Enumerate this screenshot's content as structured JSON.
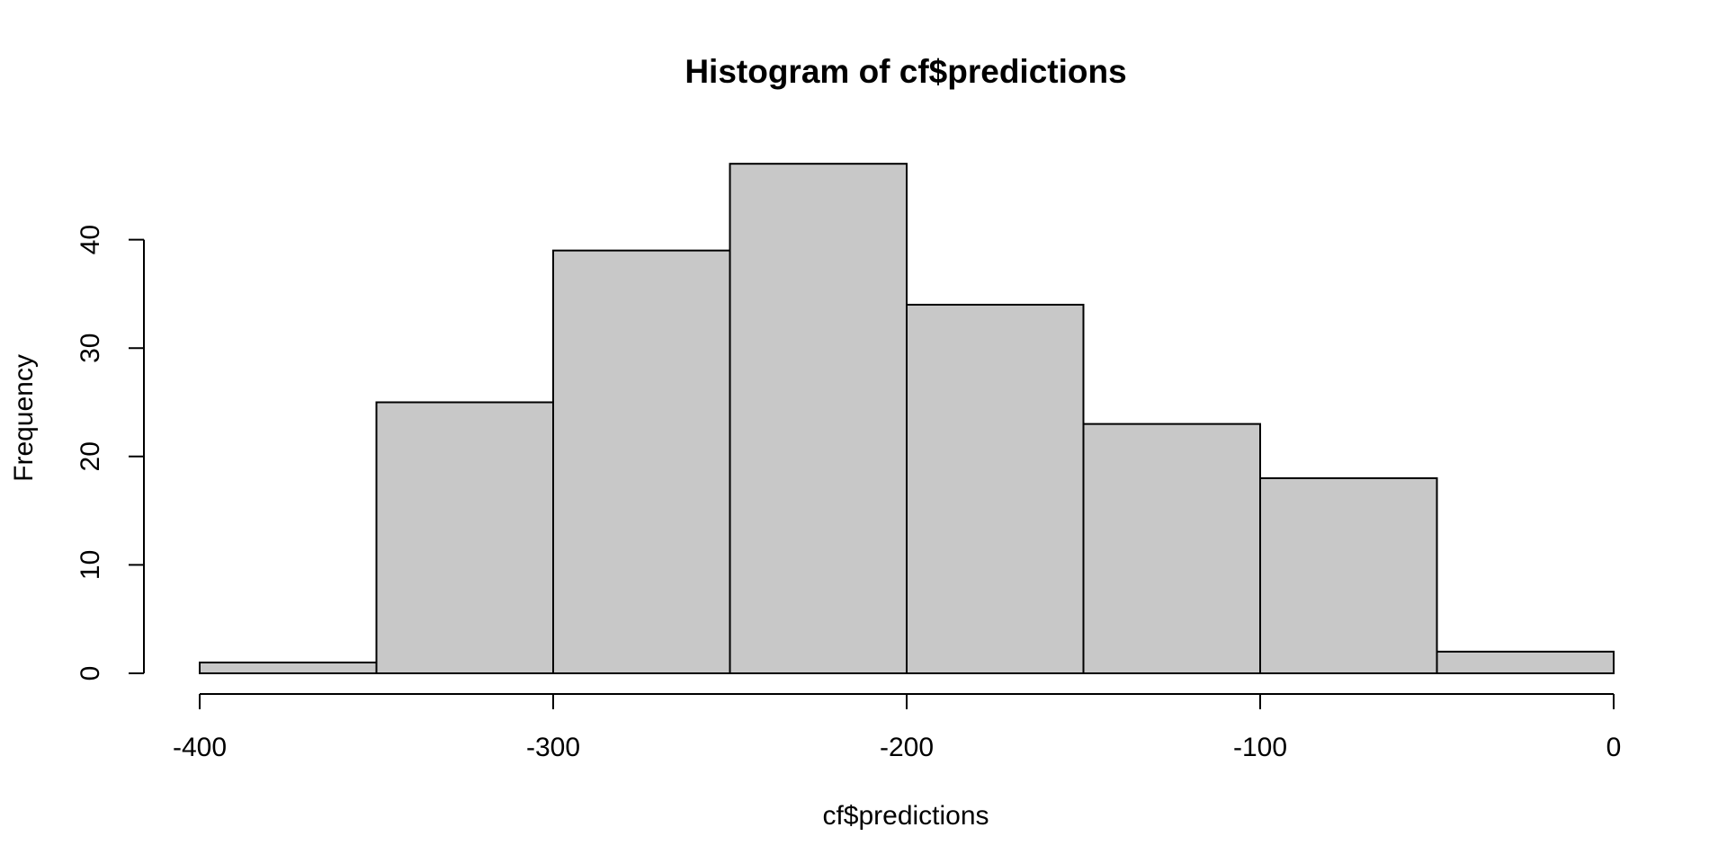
{
  "chart_data": {
    "type": "bar",
    "title": "Histogram of cf$predictions",
    "xlabel": "cf$predictions",
    "ylabel": "Frequency",
    "bins": [
      {
        "start": -400,
        "end": -350,
        "count": 1
      },
      {
        "start": -350,
        "end": -300,
        "count": 25
      },
      {
        "start": -300,
        "end": -250,
        "count": 39
      },
      {
        "start": -250,
        "end": -200,
        "count": 47
      },
      {
        "start": -200,
        "end": -150,
        "count": 34
      },
      {
        "start": -150,
        "end": -100,
        "count": 23
      },
      {
        "start": -100,
        "end": -50,
        "count": 18
      },
      {
        "start": -50,
        "end": 0,
        "count": 2
      }
    ],
    "xlim": [
      -400,
      0
    ],
    "ylim": [
      0,
      47
    ],
    "x_ticks": [
      -400,
      -300,
      -200,
      -100,
      0
    ],
    "y_ticks": [
      0,
      10,
      20,
      30,
      40
    ],
    "bar_color": "#c8c8c8",
    "edge_color": "#000000",
    "grid": false,
    "legend": "none"
  }
}
